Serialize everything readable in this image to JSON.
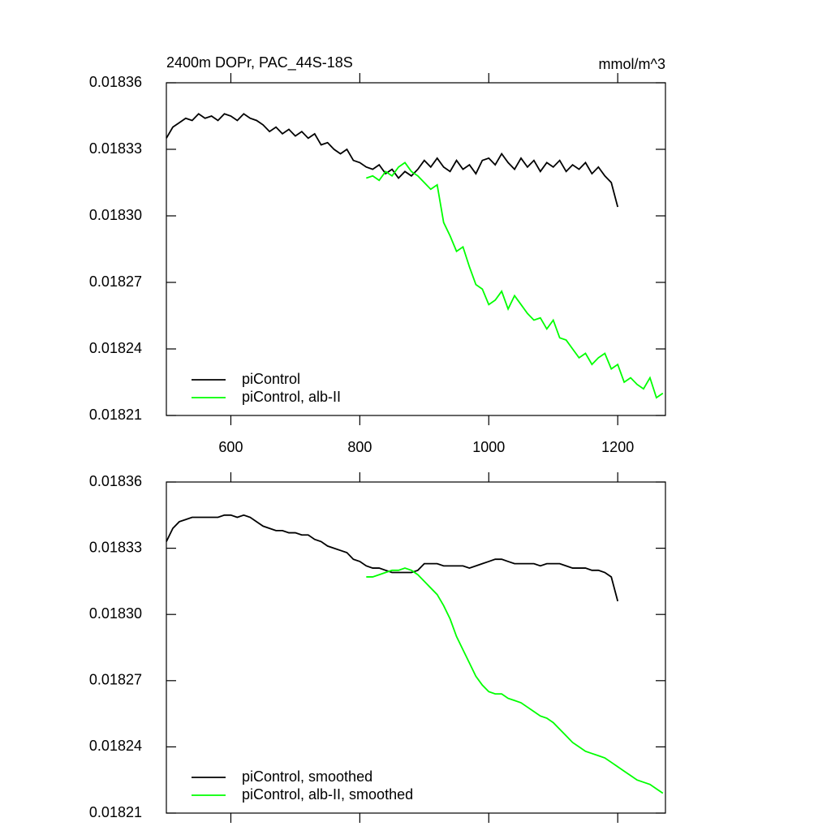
{
  "chart_data": [
    {
      "type": "line",
      "title": "2400m DOPr, PAC_44S-18S",
      "units": "mmol/m^3",
      "x": [
        500,
        510,
        520,
        530,
        540,
        550,
        560,
        570,
        580,
        590,
        600,
        610,
        620,
        630,
        640,
        650,
        660,
        670,
        680,
        690,
        700,
        710,
        720,
        730,
        740,
        750,
        760,
        770,
        780,
        790,
        800,
        810,
        820,
        830,
        840,
        850,
        860,
        870,
        880,
        890,
        900,
        910,
        920,
        930,
        940,
        950,
        960,
        970,
        980,
        990,
        1000,
        1010,
        1020,
        1030,
        1040,
        1050,
        1060,
        1070,
        1080,
        1090,
        1100,
        1110,
        1120,
        1130,
        1140,
        1150,
        1160,
        1170,
        1180,
        1190,
        1200,
        1210,
        1220,
        1230,
        1240,
        1250,
        1260,
        1270
      ],
      "series": [
        {
          "name": "piControl",
          "color": "#000000",
          "values": [
            0.018335,
            0.01834,
            0.018342,
            0.018344,
            0.018343,
            0.018346,
            0.018344,
            0.018345,
            0.018343,
            0.018346,
            0.018345,
            0.018343,
            0.018346,
            0.018344,
            0.018343,
            0.018341,
            0.018338,
            0.01834,
            0.018337,
            0.018339,
            0.018336,
            0.018338,
            0.018335,
            0.018337,
            0.018332,
            0.018333,
            0.01833,
            0.018328,
            0.01833,
            0.018325,
            0.018324,
            0.018322,
            0.018321,
            0.018323,
            0.018319,
            0.018321,
            0.018317,
            0.01832,
            0.018318,
            0.018321,
            0.018325,
            0.018322,
            0.018326,
            0.018322,
            0.01832,
            0.018325,
            0.018321,
            0.018323,
            0.018319,
            0.018325,
            0.018326,
            0.018323,
            0.018328,
            0.018324,
            0.018321,
            0.018326,
            0.018322,
            0.018325,
            0.01832,
            0.018324,
            0.018322,
            0.018325,
            0.01832,
            0.018323,
            0.018321,
            0.018324,
            0.018319,
            0.018322,
            0.018318,
            0.018315,
            0.018304,
            null,
            null,
            null,
            null,
            null,
            null,
            null
          ]
        },
        {
          "name": "piControl, alb-II",
          "color": "#00ff00",
          "values": [
            null,
            null,
            null,
            null,
            null,
            null,
            null,
            null,
            null,
            null,
            null,
            null,
            null,
            null,
            null,
            null,
            null,
            null,
            null,
            null,
            null,
            null,
            null,
            null,
            null,
            null,
            null,
            null,
            null,
            null,
            null,
            0.018317,
            0.018318,
            0.018316,
            0.01832,
            0.018318,
            0.018322,
            0.018324,
            0.01832,
            0.018318,
            0.018315,
            0.018312,
            0.018314,
            0.018297,
            0.018291,
            0.018284,
            0.018286,
            0.018277,
            0.018269,
            0.018267,
            0.01826,
            0.018262,
            0.018266,
            0.018258,
            0.018264,
            0.01826,
            0.018256,
            0.018253,
            0.018254,
            0.018249,
            0.018253,
            0.018245,
            0.018244,
            0.01824,
            0.018236,
            0.018238,
            0.018233,
            0.018236,
            0.018238,
            0.018231,
            0.018233,
            0.018225,
            0.018227,
            0.018224,
            0.018222,
            0.018227,
            0.018218,
            0.01822
          ]
        }
      ],
      "xlim": [
        500,
        1274
      ],
      "xticks": [
        600,
        800,
        1000,
        1200
      ],
      "show_xtick_labels": true,
      "ylim": [
        0.01821,
        0.01836
      ],
      "yticks": [
        0.01821,
        0.01824,
        0.01827,
        {
          "value": 0.0183,
          "label": "0.01830"
        },
        0.01833,
        0.01836
      ],
      "legend": "lower left"
    },
    {
      "type": "line",
      "x": [
        500,
        510,
        520,
        530,
        540,
        550,
        560,
        570,
        580,
        590,
        600,
        610,
        620,
        630,
        640,
        650,
        660,
        670,
        680,
        690,
        700,
        710,
        720,
        730,
        740,
        750,
        760,
        770,
        780,
        790,
        800,
        810,
        820,
        830,
        840,
        850,
        860,
        870,
        880,
        890,
        900,
        910,
        920,
        930,
        940,
        950,
        960,
        970,
        980,
        990,
        1000,
        1010,
        1020,
        1030,
        1040,
        1050,
        1060,
        1070,
        1080,
        1090,
        1100,
        1110,
        1120,
        1130,
        1140,
        1150,
        1160,
        1170,
        1180,
        1190,
        1200,
        1210,
        1220,
        1230,
        1240,
        1250,
        1260,
        1270
      ],
      "series": [
        {
          "name": "piControl, smoothed",
          "color": "#000000",
          "values": [
            0.018333,
            0.018339,
            0.018342,
            0.018343,
            0.018344,
            0.018344,
            0.018344,
            0.018344,
            0.018344,
            0.018345,
            0.018345,
            0.018344,
            0.018345,
            0.018344,
            0.018342,
            0.01834,
            0.018339,
            0.018338,
            0.018338,
            0.018337,
            0.018337,
            0.018336,
            0.018336,
            0.018334,
            0.018333,
            0.018331,
            0.01833,
            0.018329,
            0.018328,
            0.018325,
            0.018324,
            0.018322,
            0.018321,
            0.018321,
            0.01832,
            0.018319,
            0.018319,
            0.018319,
            0.018319,
            0.01832,
            0.018323,
            0.018323,
            0.018323,
            0.018322,
            0.018322,
            0.018322,
            0.018322,
            0.018321,
            0.018322,
            0.018323,
            0.018324,
            0.018325,
            0.018325,
            0.018324,
            0.018323,
            0.018323,
            0.018323,
            0.018323,
            0.018322,
            0.018323,
            0.018323,
            0.018323,
            0.018322,
            0.018321,
            0.018321,
            0.018321,
            0.01832,
            0.01832,
            0.018319,
            0.018317,
            0.018306,
            null,
            null,
            null,
            null,
            null,
            null,
            null
          ]
        },
        {
          "name": "piControl, alb-II, smoothed",
          "color": "#00ff00",
          "values": [
            null,
            null,
            null,
            null,
            null,
            null,
            null,
            null,
            null,
            null,
            null,
            null,
            null,
            null,
            null,
            null,
            null,
            null,
            null,
            null,
            null,
            null,
            null,
            null,
            null,
            null,
            null,
            null,
            null,
            null,
            null,
            0.018317,
            0.018317,
            0.018318,
            0.018319,
            0.01832,
            0.01832,
            0.018321,
            0.01832,
            0.018318,
            0.018315,
            0.018312,
            0.018309,
            0.018304,
            0.018298,
            0.01829,
            0.018284,
            0.018278,
            0.018272,
            0.018268,
            0.018265,
            0.018264,
            0.018264,
            0.018262,
            0.018261,
            0.01826,
            0.018258,
            0.018256,
            0.018254,
            0.018253,
            0.018251,
            0.018248,
            0.018245,
            0.018242,
            0.01824,
            0.018238,
            0.018237,
            0.018236,
            0.018235,
            0.018233,
            0.018231,
            0.018229,
            0.018227,
            0.018225,
            0.018224,
            0.018223,
            0.018221,
            0.018219
          ]
        }
      ],
      "xlim": [
        500,
        1274
      ],
      "xticks": [
        600,
        800,
        1000,
        1200
      ],
      "show_xtick_labels": false,
      "ylim": [
        0.01821,
        0.01836
      ],
      "yticks": [
        0.01821,
        0.01824,
        0.01827,
        {
          "value": 0.0183,
          "label": "0.01830"
        },
        0.01833,
        0.01836
      ],
      "legend": "lower left"
    }
  ]
}
